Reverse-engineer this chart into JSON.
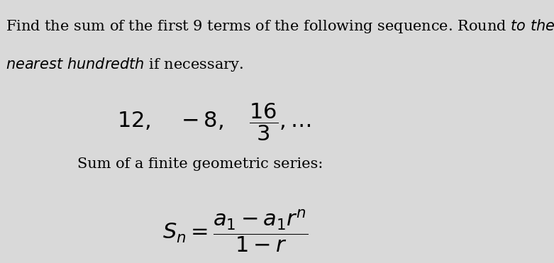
{
  "bg_color": "#d9d9d9",
  "text_color": "#000000",
  "line1": "Find the sum of the first 9 terms of the following sequence. Round ",
  "line1_italic": "to the",
  "line2_italic": "nearest hundredth",
  "line2_rest": " if necessary.",
  "sequence_label": "12,\\quad -8,\\quad \\dfrac{16}{3},\\ldots",
  "formula_label": "Sum of a finite geometric series:",
  "formula_math": "S_n = \\dfrac{a_1 - a_1r^n}{1 - r}",
  "font_size_body": 15,
  "font_size_seq": 18,
  "font_size_formula_label": 15,
  "font_size_formula": 18
}
